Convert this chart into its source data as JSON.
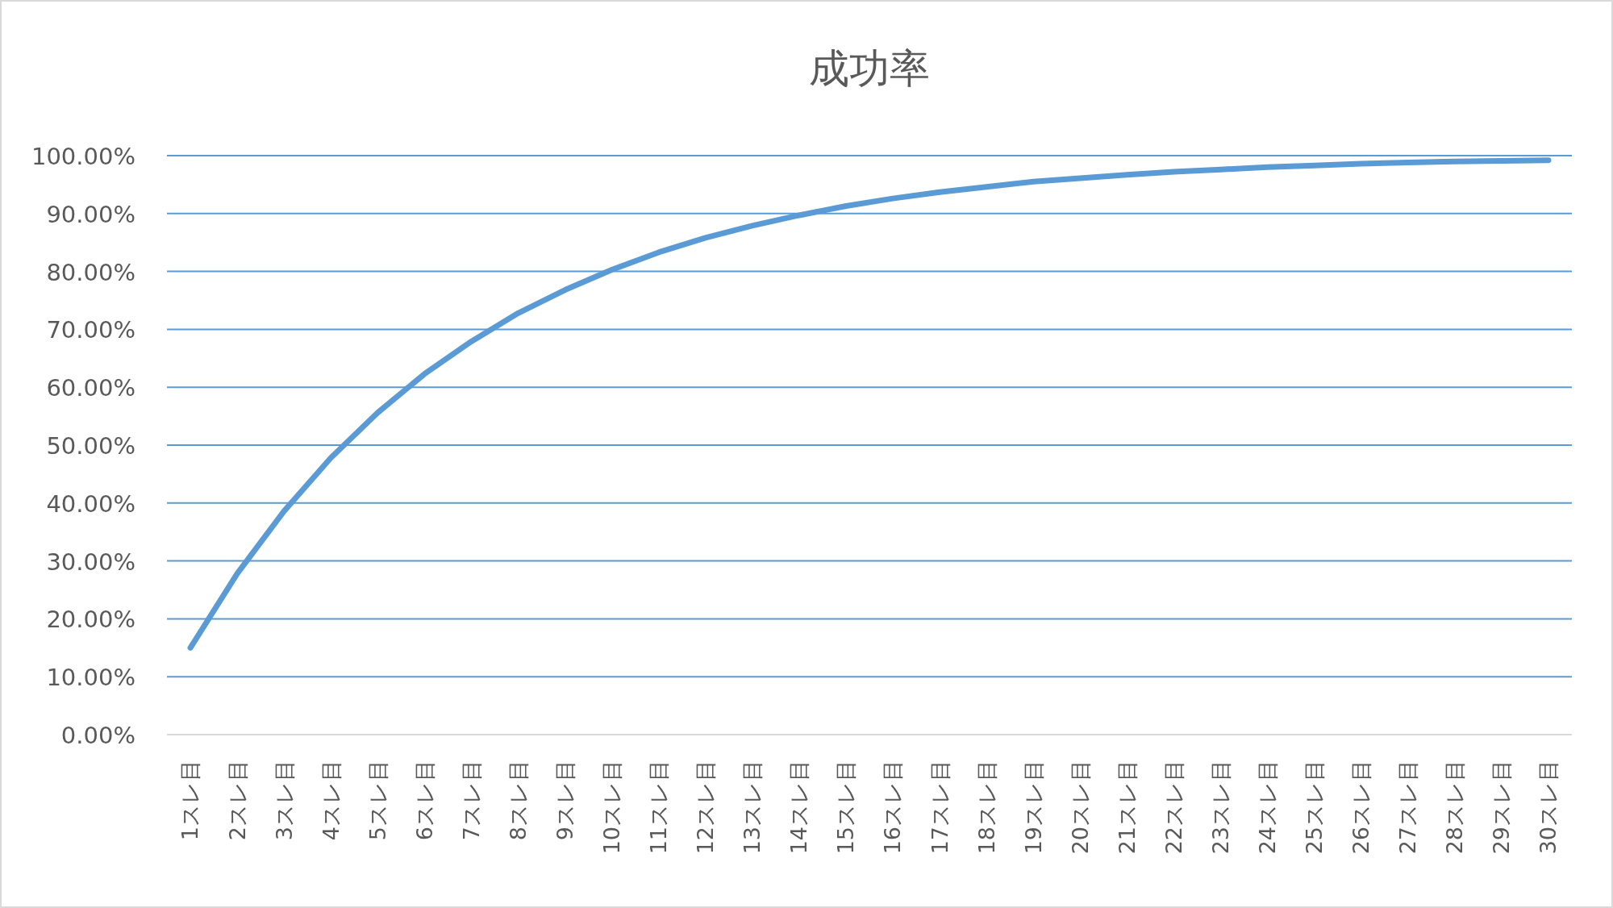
{
  "chart_data": {
    "type": "line",
    "title": "成功率",
    "categories": [
      "1スレ目",
      "2スレ目",
      "3スレ目",
      "4スレ目",
      "5スレ目",
      "6スレ目",
      "7スレ目",
      "8スレ目",
      "9スレ目",
      "10スレ目",
      "11スレ目",
      "12スレ目",
      "13スレ目",
      "14スレ目",
      "15スレ目",
      "16スレ目",
      "17スレ目",
      "18スレ目",
      "19スレ目",
      "20スレ目",
      "21スレ目",
      "22スレ目",
      "23スレ目",
      "24スレ目",
      "25スレ目",
      "26スレ目",
      "27スレ目",
      "28スレ目",
      "29スレ目",
      "30スレ目"
    ],
    "series": [
      {
        "color": "#5b9bd5",
        "values": [
          15,
          27.8,
          38.6,
          47.8,
          55.6,
          62.3,
          67.9,
          72.8,
          76.8,
          80.3,
          83.3,
          85.8,
          87.9,
          89.7,
          91.3,
          92.6,
          93.7,
          94.6,
          95.5,
          96.1,
          96.7,
          97.2,
          97.6,
          98.0,
          98.3,
          98.6,
          98.8,
          99.0,
          99.1,
          99.2
        ]
      }
    ],
    "ylim": [
      0,
      100
    ],
    "yticks": [
      {
        "value": 0,
        "label": "0.00%"
      },
      {
        "value": 10,
        "label": "10.00%"
      },
      {
        "value": 20,
        "label": "20.00%"
      },
      {
        "value": 30,
        "label": "30.00%"
      },
      {
        "value": 40,
        "label": "40.00%"
      },
      {
        "value": 50,
        "label": "50.00%"
      },
      {
        "value": 60,
        "label": "60.00%"
      },
      {
        "value": 70,
        "label": "70.00%"
      },
      {
        "value": 80,
        "label": "80.00%"
      },
      {
        "value": 90,
        "label": "90.00%"
      },
      {
        "value": 100,
        "label": "100.00%"
      }
    ],
    "grid": "y",
    "marker": "none",
    "line_style": "solid"
  }
}
